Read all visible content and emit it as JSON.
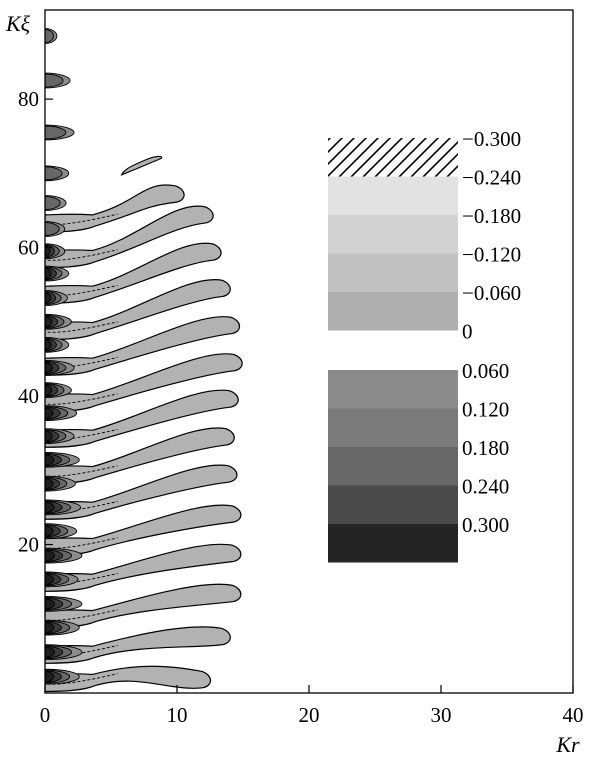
{
  "chart_data": {
    "type": "heatmap",
    "xlabel": "Kr",
    "ylabel": "Kξ",
    "xlim": [
      0,
      40
    ],
    "ylim": [
      0,
      92
    ],
    "x_ticks": [
      {
        "value": 0,
        "label": "0"
      },
      {
        "value": 10,
        "label": "10"
      },
      {
        "value": 20,
        "label": "20"
      },
      {
        "value": 30,
        "label": "30"
      },
      {
        "value": 40,
        "label": "40"
      }
    ],
    "y_ticks": [
      {
        "value": 20,
        "label": "20"
      },
      {
        "value": 40,
        "label": "40"
      },
      {
        "value": 60,
        "label": "60"
      },
      {
        "value": 80,
        "label": "80"
      }
    ],
    "legend": {
      "placement": "right",
      "negative_levels": [
        {
          "label": "−0.300",
          "value": -0.3,
          "style": "hatched"
        },
        {
          "label": "−0.240",
          "value": -0.24,
          "color": "#e2e2e2"
        },
        {
          "label": "−0.180",
          "value": -0.18,
          "color": "#d2d2d2"
        },
        {
          "label": "−0.120",
          "value": -0.12,
          "color": "#c1c1c1"
        },
        {
          "label": "−0.060",
          "value": -0.06,
          "color": "#afafaf"
        },
        {
          "label": "0",
          "value": 0
        }
      ],
      "positive_levels": [
        {
          "label": "0.060",
          "value": 0.06,
          "color": "#8b8b8b"
        },
        {
          "label": "0.120",
          "value": 0.12,
          "color": "#7a7a7a"
        },
        {
          "label": "0.180",
          "value": 0.18,
          "color": "#676767"
        },
        {
          "label": "0.240",
          "value": 0.24,
          "color": "#4a4a4a"
        },
        {
          "label": "0.300",
          "value": 0.3,
          "color": "#242424"
        }
      ]
    },
    "negative_fingers": [
      {
        "y0": 0.2,
        "xend": 12.5,
        "rise": 1.5
      },
      {
        "y0": 4.0,
        "xend": 14.0,
        "rise": 3.5
      },
      {
        "y0": 8.8,
        "xend": 14.8,
        "rise": 4.5
      },
      {
        "y0": 13.7,
        "xend": 14.8,
        "rise": 5.0
      },
      {
        "y0": 18.5,
        "xend": 14.8,
        "rise": 5.5
      },
      {
        "y0": 23.4,
        "xend": 14.5,
        "rise": 6.0
      },
      {
        "y0": 28.2,
        "xend": 14.3,
        "rise": 6.2
      },
      {
        "y0": 33.1,
        "xend": 14.6,
        "rise": 6.4
      },
      {
        "y0": 37.9,
        "xend": 14.9,
        "rise": 6.5
      },
      {
        "y0": 42.8,
        "xend": 14.7,
        "rise": 6.6
      },
      {
        "y0": 47.6,
        "xend": 14.0,
        "rise": 6.8
      },
      {
        "y0": 52.5,
        "xend": 13.3,
        "rise": 6.8
      },
      {
        "y0": 57.3,
        "xend": 12.7,
        "rise": 7.0
      },
      {
        "y0": 62.1,
        "xend": 10.5,
        "rise": 5.0
      }
    ],
    "positive_lobes": [
      {
        "y": 2.2,
        "xend": 2.6
      },
      {
        "y": 5.5,
        "xend": 2.8
      },
      {
        "y": 8.8,
        "xend": 2.6
      },
      {
        "y": 12.0,
        "xend": 2.8
      },
      {
        "y": 15.3,
        "xend": 2.5
      },
      {
        "y": 18.5,
        "xend": 2.8
      },
      {
        "y": 21.8,
        "xend": 2.4
      },
      {
        "y": 25.0,
        "xend": 2.7
      },
      {
        "y": 28.2,
        "xend": 2.3
      },
      {
        "y": 31.4,
        "xend": 2.6
      },
      {
        "y": 34.6,
        "xend": 2.2
      },
      {
        "y": 37.7,
        "xend": 2.4
      },
      {
        "y": 40.8,
        "xend": 2.0
      },
      {
        "y": 43.8,
        "xend": 2.2
      },
      {
        "y": 46.9,
        "xend": 1.8
      },
      {
        "y": 50.0,
        "xend": 2.0
      },
      {
        "y": 53.2,
        "xend": 1.7
      },
      {
        "y": 56.5,
        "xend": 1.8
      },
      {
        "y": 59.5,
        "xend": 1.5
      },
      {
        "y": 62.5,
        "xend": 1.5
      },
      {
        "y": 66.0,
        "xend": 1.6
      },
      {
        "y": 70.0,
        "xend": 1.8
      },
      {
        "y": 75.5,
        "xend": 2.2
      },
      {
        "y": 82.5,
        "xend": 1.9
      },
      {
        "y": 88.5,
        "xend": 0.9
      }
    ]
  }
}
